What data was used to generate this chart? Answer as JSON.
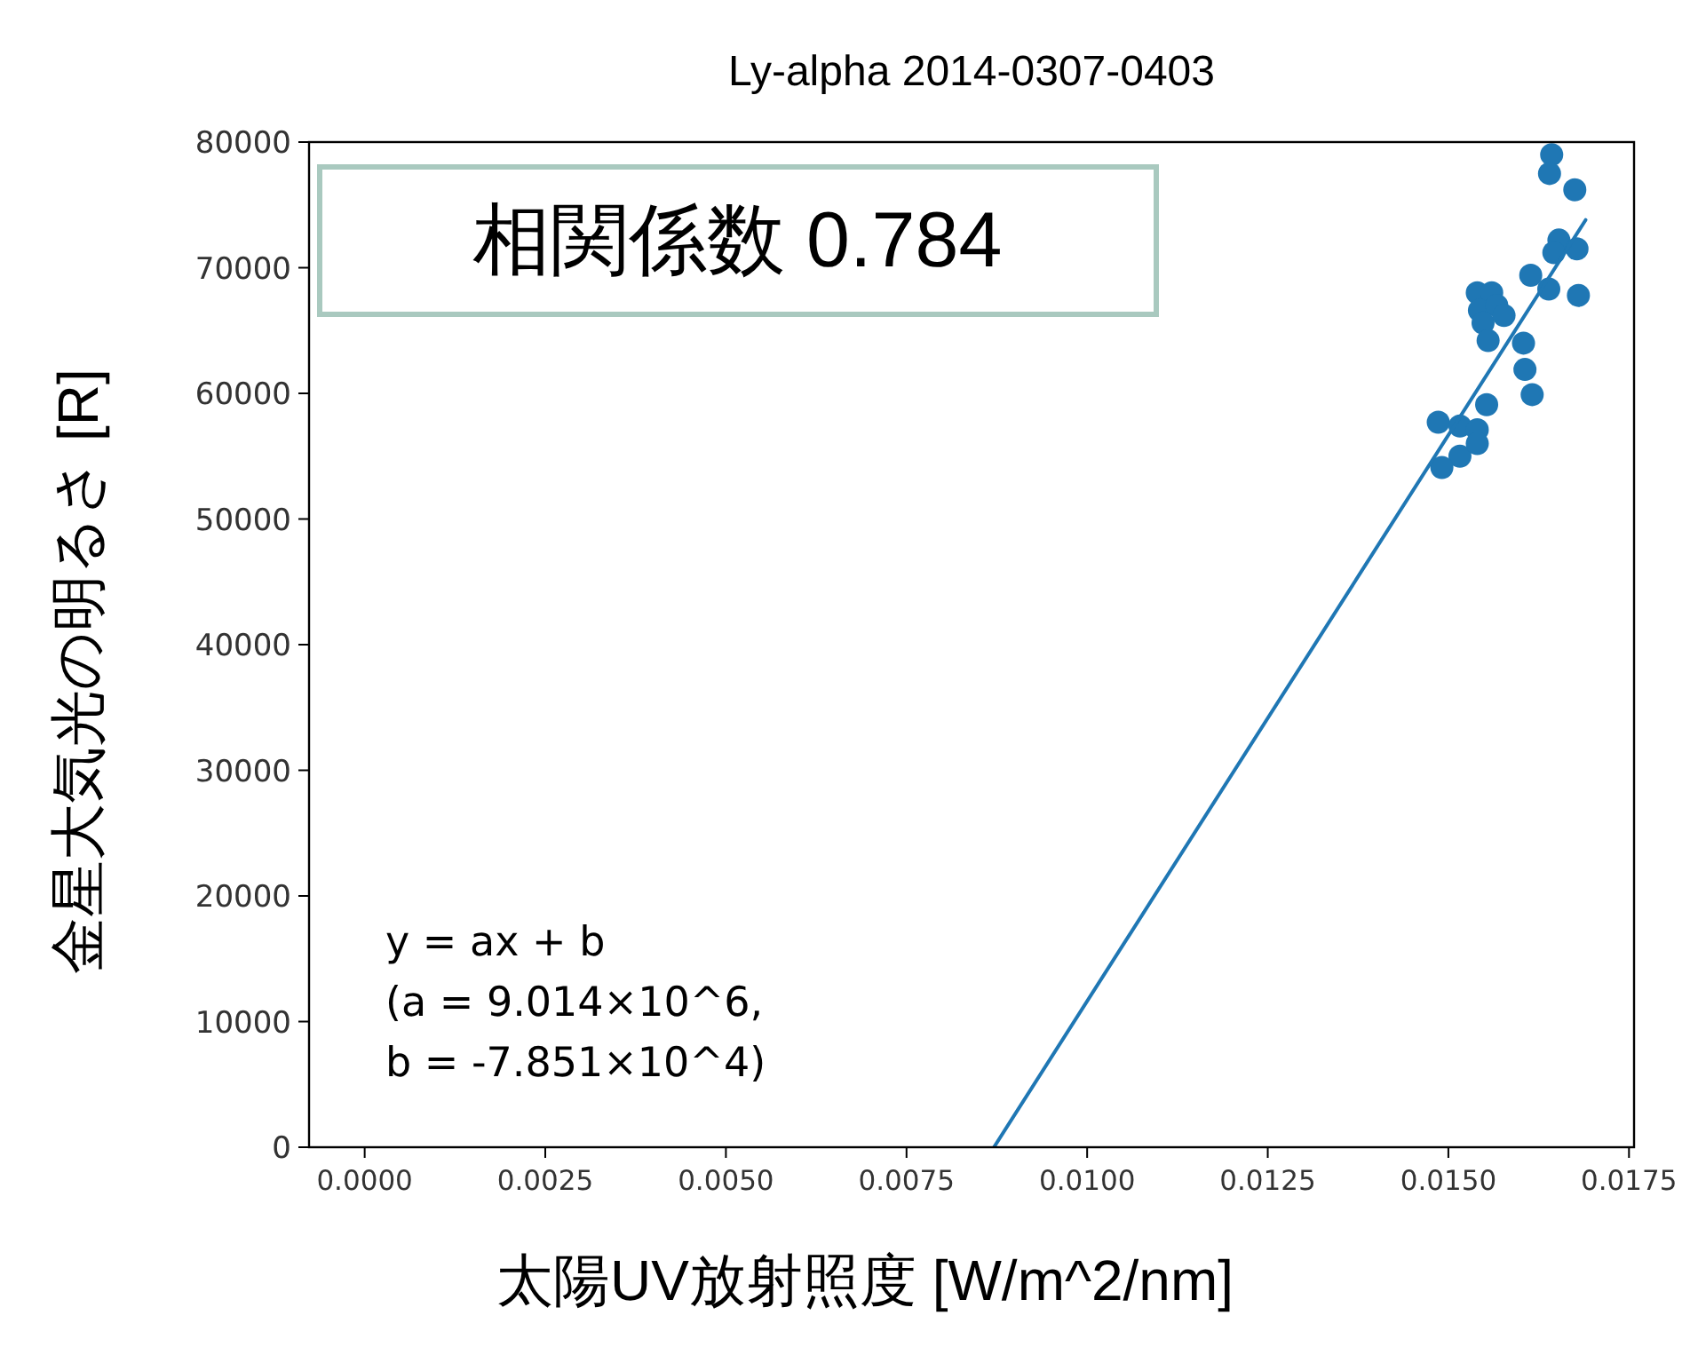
{
  "chart_data": {
    "type": "scatter",
    "title": "Ly-alpha 2014-0307-0403",
    "xlabel": "太陽UV放射照度 [W/m^2/nm]",
    "ylabel": "金星大気光の明るさ [R]",
    "annotations": [
      "相関係数 0.784",
      "y = ax + b\n(a = 9.014×10^6,\nb = -7.851×10^4)"
    ],
    "xlim": [
      -0.00077,
      0.01757
    ],
    "xticks": [
      {
        "value": 0,
        "label": "0.0000"
      },
      {
        "value": 0.0025,
        "label": "0.0025"
      },
      {
        "value": 0.005,
        "label": "0.0050"
      },
      {
        "value": 0.0075,
        "label": "0.0075"
      },
      {
        "value": 0.01,
        "label": "0.0100"
      },
      {
        "value": 0.0125,
        "label": "0.0125"
      },
      {
        "value": 0.015,
        "label": "0.0150"
      },
      {
        "value": 0.0175,
        "label": "0.0175"
      }
    ],
    "ylim": [
      0,
      80000
    ],
    "yticks": [
      0,
      10000,
      20000,
      30000,
      40000,
      50000,
      60000,
      70000,
      80000
    ],
    "grid": false,
    "series": [
      {
        "type": "scatter",
        "marker": "circle",
        "color": "#1f77b4",
        "x": [
          0.01643,
          0.0164,
          0.01675,
          0.01653,
          0.01678,
          0.01646,
          0.01614,
          0.01639,
          0.0168,
          0.0154,
          0.0156,
          0.01543,
          0.01567,
          0.01548,
          0.01577,
          0.01555,
          0.01604,
          0.01606,
          0.01616,
          0.01553,
          0.01486,
          0.01516,
          0.0154,
          0.01516,
          0.01491,
          0.0154
        ],
        "values": [
          79000,
          77500,
          76200,
          72200,
          71500,
          71200,
          69400,
          68300,
          67800,
          68000,
          68000,
          66600,
          67000,
          65600,
          66200,
          64200,
          64000,
          61900,
          59900,
          59100,
          57700,
          57400,
          57100,
          55000,
          54100,
          56000
        ]
      },
      {
        "type": "line",
        "marker": "none",
        "line_style": "solid",
        "color": "#1f77b4",
        "x": [
          0.00871,
          0.0169
        ],
        "values": [
          0,
          73800
        ]
      }
    ]
  }
}
